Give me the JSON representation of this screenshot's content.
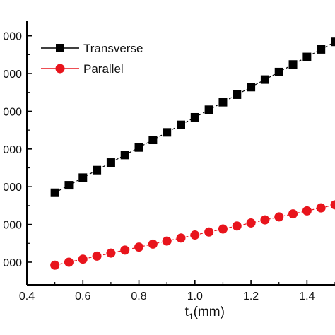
{
  "chart_data": {
    "type": "line",
    "x": [
      0.5,
      0.55,
      0.6,
      0.65,
      0.7,
      0.75,
      0.8,
      0.85,
      0.9,
      0.95,
      1.0,
      1.05,
      1.1,
      1.15,
      1.2,
      1.25,
      1.3,
      1.35,
      1.4,
      1.45,
      1.5
    ],
    "series": [
      {
        "name": "Transverse",
        "color": "#000000",
        "marker": "square",
        "line_style": "dash",
        "values": [
          1.84,
          2.04,
          2.24,
          2.44,
          2.64,
          2.84,
          3.04,
          3.24,
          3.44,
          3.64,
          3.84,
          4.04,
          4.24,
          4.44,
          4.64,
          4.84,
          5.04,
          5.24,
          5.44,
          5.64,
          5.84
        ]
      },
      {
        "name": "Parallel",
        "color": "#e8141c",
        "marker": "circle",
        "line_style": "dash",
        "values": [
          -0.08,
          0.0,
          0.08,
          0.16,
          0.24,
          0.32,
          0.4,
          0.48,
          0.56,
          0.64,
          0.72,
          0.8,
          0.88,
          0.96,
          1.04,
          1.12,
          1.2,
          1.28,
          1.36,
          1.44,
          1.52
        ]
      }
    ],
    "xlabel": "t1(mm)",
    "xlabel_main": "t",
    "xlabel_sub": "1",
    "xlabel_rest": "(mm)",
    "ylabel": "",
    "xlim": [
      0.4,
      1.5
    ],
    "ylim": [
      -0.6,
      6.2
    ],
    "x_ticks": [
      0.4,
      0.6,
      0.8,
      1.0,
      1.2,
      1.4
    ],
    "x_tick_labels": [
      "0.4",
      "0.6",
      "0.8",
      "1.0",
      "1.2",
      "1.4"
    ],
    "y_ticks": [
      0,
      1,
      2,
      3,
      4,
      5,
      6
    ],
    "y_tick_labels": [
      "000",
      "000",
      "000",
      "000",
      "000",
      "000",
      "000"
    ],
    "grid": false,
    "legend_position": "top-left"
  }
}
